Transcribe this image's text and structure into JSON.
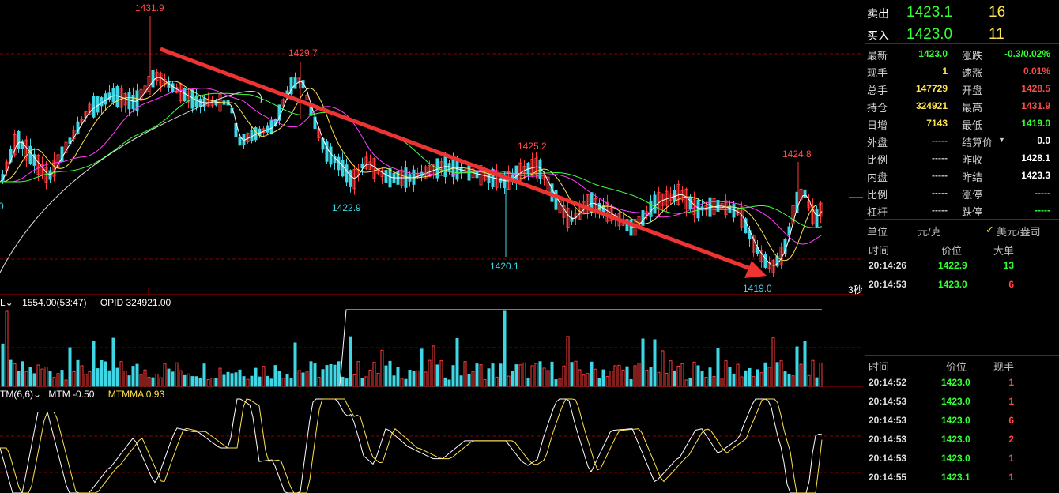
{
  "chart": {
    "price_labels": {
      "high": "1431.9",
      "peak2": "1429.7",
      "peak3": "1425.2",
      "peak4": "1424.8",
      "low1": "1422.9",
      "low2": "1420.1",
      "low3": "1419.0"
    },
    "left_axis_fragment": "0",
    "period_label": "3秒",
    "volume_header": {
      "vol": "1554.00(53:47)",
      "opid": "OPID 324921.00"
    },
    "mtm_header": {
      "name": "TM(6,6)",
      "mtm": "MTM -0.50",
      "mtmma": "MTMMA 0.93"
    },
    "colors": {
      "up": "#ff3c3c",
      "down": "#3fd7e6",
      "ma_white": "#ffffff",
      "ma_yellow": "#ffe44d",
      "ma_magenta": "#ff40ff",
      "ma_green": "#40ff40",
      "arrow": "#ee3333",
      "grid": "#8a0000"
    }
  },
  "panel": {
    "ask": {
      "label": "卖出",
      "price": "1423.1",
      "qty": "16"
    },
    "bid": {
      "label": "买入",
      "price": "1423.0",
      "qty": "11"
    },
    "stats_left": [
      {
        "k": "最新",
        "v": "1423.0",
        "c": "green"
      },
      {
        "k": "现手",
        "v": "1",
        "c": "yellow"
      },
      {
        "k": "总手",
        "v": "147729",
        "c": "yellow"
      },
      {
        "k": "持仓",
        "v": "324921",
        "c": "yellow"
      },
      {
        "k": "日增",
        "v": "7143",
        "c": "yellow"
      },
      {
        "k": "外盘",
        "v": "-----",
        "c": "gray"
      },
      {
        "k": "比例",
        "v": "-----",
        "c": "gray"
      },
      {
        "k": "内盘",
        "v": "-----",
        "c": "gray"
      },
      {
        "k": "比例",
        "v": "-----",
        "c": "gray"
      },
      {
        "k": "杠杆",
        "v": "-----",
        "c": "gray"
      }
    ],
    "stats_right": [
      {
        "k": "涨跌",
        "v": "-0.3/0.02%",
        "c": "green"
      },
      {
        "k": "速涨",
        "v": "0.01%",
        "c": "red"
      },
      {
        "k": "开盘",
        "v": "1428.5",
        "c": "red"
      },
      {
        "k": "最高",
        "v": "1431.9",
        "c": "red"
      },
      {
        "k": "最低",
        "v": "1419.0",
        "c": "green"
      },
      {
        "k": "结算价",
        "v": "0.0",
        "c": "white"
      },
      {
        "k": "昨收",
        "v": "1428.1",
        "c": "white"
      },
      {
        "k": "昨结",
        "v": "1423.3",
        "c": "white"
      },
      {
        "k": "涨停",
        "v": "-----",
        "c": "red"
      },
      {
        "k": "跌停",
        "v": "-----",
        "c": "green"
      }
    ],
    "unit": {
      "label": "单位",
      "value": "元/克",
      "currency": "美元/盎司"
    },
    "big_orders": {
      "headers": [
        "时间",
        "价位",
        "大单"
      ],
      "rows": [
        {
          "time": "20:14:26",
          "price": "1422.9",
          "qty": "13",
          "pc": "green",
          "qc": "green"
        },
        {
          "time": "20:14:53",
          "price": "1423.0",
          "qty": "6",
          "pc": "green",
          "qc": "red"
        }
      ]
    },
    "ticks": {
      "headers": [
        "时间",
        "价位",
        "现手"
      ],
      "rows": [
        {
          "time": "20:14:52",
          "price": "1423.0",
          "qty": "1"
        },
        {
          "time": "20:14:53",
          "price": "1423.0",
          "qty": "1"
        },
        {
          "time": "20:14:53",
          "price": "1423.0",
          "qty": "6"
        },
        {
          "time": "20:14:53",
          "price": "1423.0",
          "qty": "2"
        },
        {
          "time": "20:14:53",
          "price": "1423.0",
          "qty": "1"
        },
        {
          "time": "20:14:55",
          "price": "1423.1",
          "qty": "1"
        }
      ]
    }
  }
}
